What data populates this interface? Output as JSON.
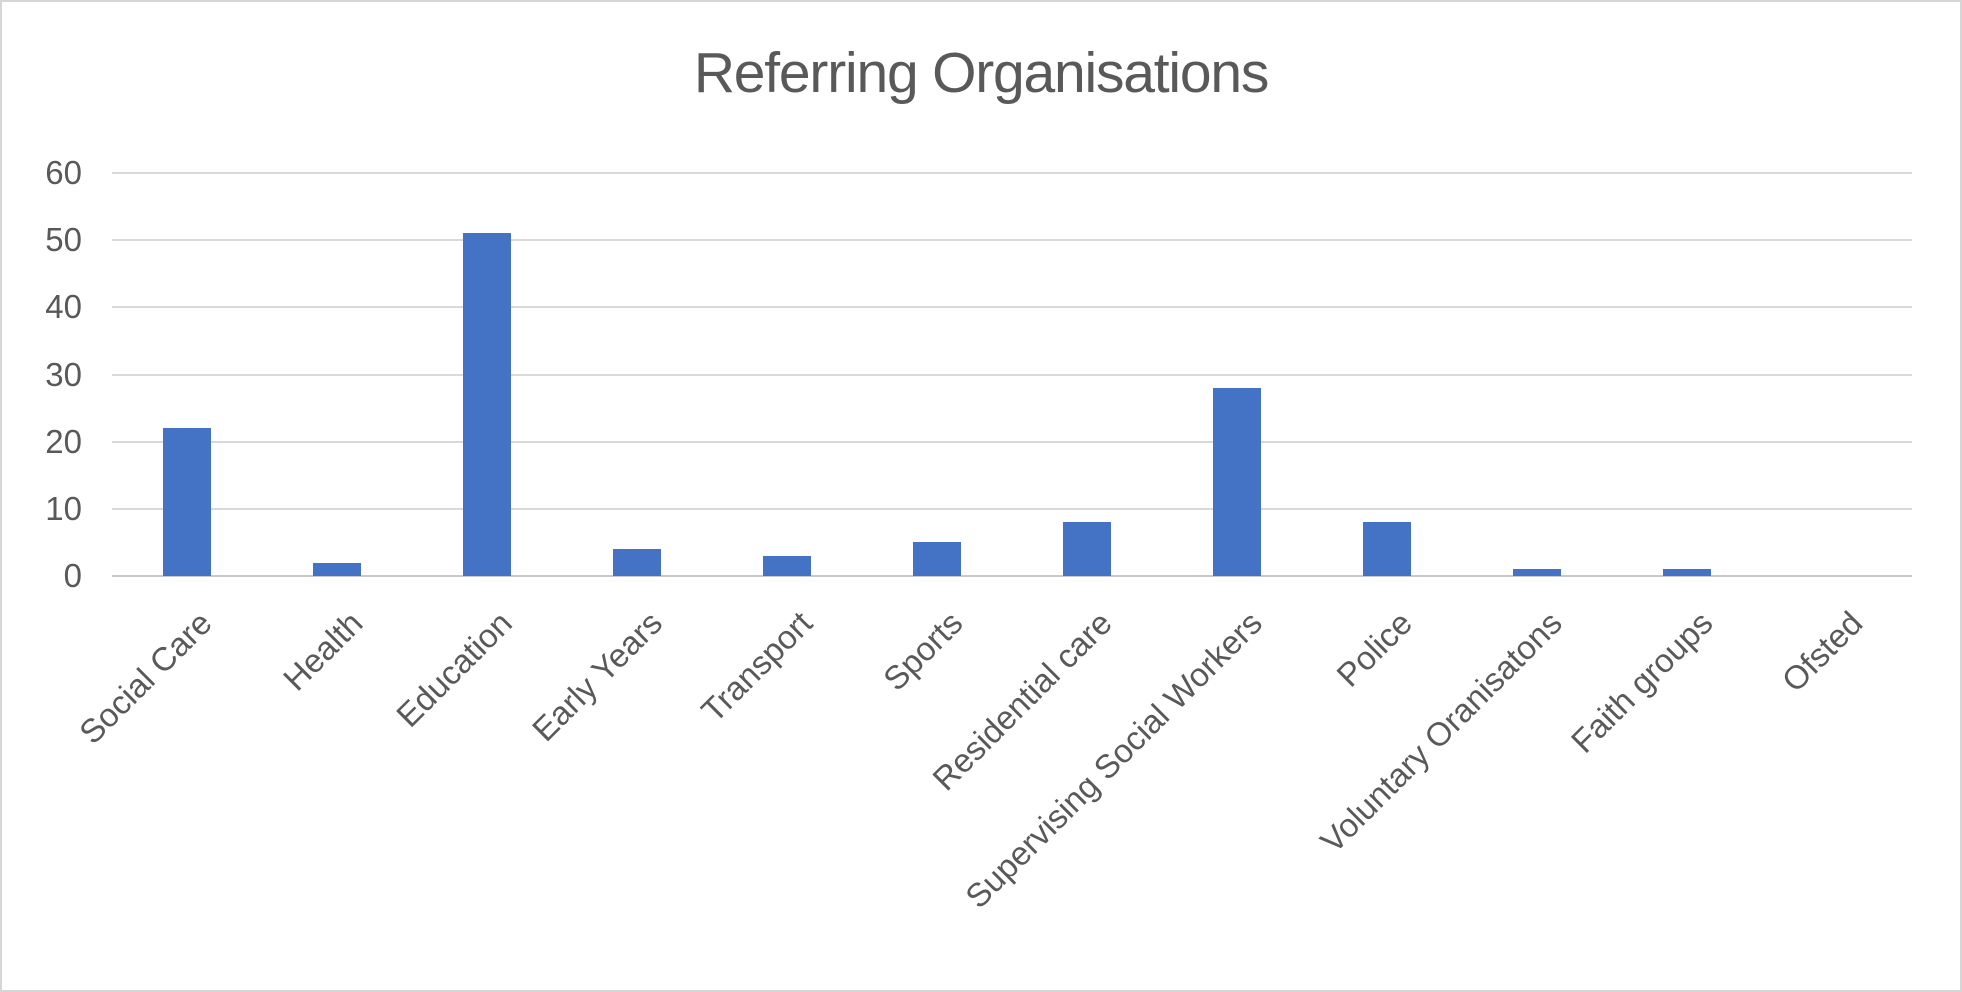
{
  "title": "Referring Organisations",
  "colors": {
    "bar": "#4472c4",
    "gridline": "#d9d9d9",
    "axis_line": "#c9c9c9",
    "text": "#595959",
    "border": "#d6d6d6",
    "background": "#ffffff"
  },
  "chart_data": {
    "type": "bar",
    "title": "Referring Organisations",
    "categories": [
      "Social Care",
      "Health",
      "Education",
      "Early Years",
      "Transport",
      "Sports",
      "Residential care",
      "Supervising Social Workers",
      "Police",
      "Voluntary Oranisatons",
      "Faith groups",
      "Ofsted"
    ],
    "values": [
      22,
      2,
      51,
      4,
      3,
      5,
      8,
      28,
      8,
      1,
      1,
      0
    ],
    "xlabel": "",
    "ylabel": "",
    "ylim": [
      0,
      60
    ],
    "yticks": [
      0,
      10,
      20,
      30,
      40,
      50,
      60
    ],
    "grid": "horizontal-only",
    "legend": "none",
    "bar_color": "#4472c4",
    "x_label_rotation_deg": -45
  }
}
